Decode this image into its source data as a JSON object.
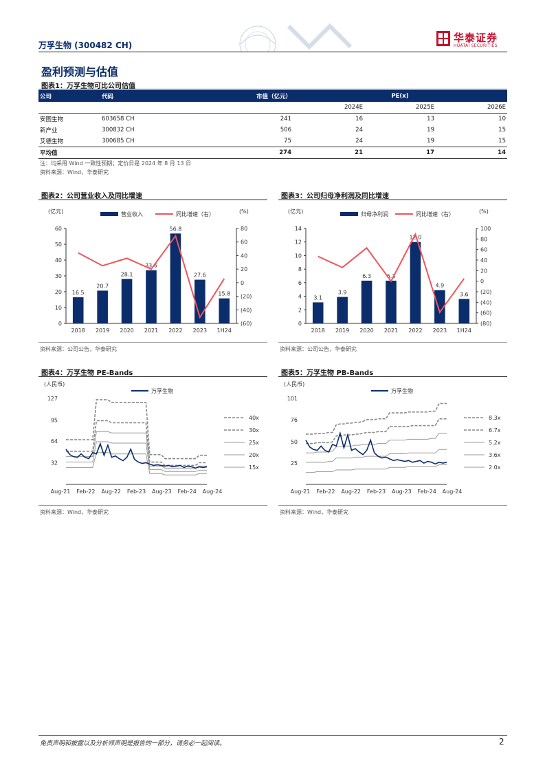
{
  "header": {
    "company": "万孚生物 (300482 CH)",
    "logo_cn": "华泰证券",
    "logo_en": "HUATAI SECURITIES"
  },
  "section_title": "盈利预测与估值",
  "table1": {
    "title": "图表1：万孚生物可比公司估值",
    "columns": {
      "company": "公司",
      "code": "代码",
      "mktcap": "市值（亿元）",
      "pe": "PE(x)"
    },
    "years": [
      "2024E",
      "2025E",
      "2026E"
    ],
    "rows": [
      {
        "company": "安图生物",
        "code": "603658 CH",
        "mktcap": "241",
        "pe": [
          "16",
          "13",
          "10"
        ]
      },
      {
        "company": "新产业",
        "code": "300832 CH",
        "mktcap": "506",
        "pe": [
          "24",
          "19",
          "15"
        ]
      },
      {
        "company": "艾德生物",
        "code": "300685 CH",
        "mktcap": "75",
        "pe": [
          "24",
          "19",
          "15"
        ]
      }
    ],
    "avg": {
      "company": "平均值",
      "mktcap": "274",
      "pe": [
        "21",
        "17",
        "14"
      ]
    },
    "note": "注：均采用 Wind 一致性预期；定价日是 2024 年 8 月 13 日",
    "source": "资料来源：Wind，华泰研究"
  },
  "charts": {
    "fig2": {
      "title": "图表2：公司营业收入及同比增速",
      "source": "资料来源：公司公告，华泰研究"
    },
    "fig3": {
      "title": "图表3：公司归母净利润及同比增速",
      "source": "资料来源：公司公告，华泰研究"
    },
    "fig4": {
      "title": "图表4：万孚生物 PE-Bands",
      "source": "资料来源：Wind，华泰研究"
    },
    "fig5": {
      "title": "图表5：万孚生物 PB-Bands",
      "source": "资料来源：Wind，华泰研究"
    }
  },
  "chart_data": [
    {
      "type": "bar",
      "categories": [
        "2018",
        "2019",
        "2020",
        "2021",
        "2022",
        "2023",
        "1H24"
      ],
      "series": [
        {
          "name": "营业收入",
          "kind": "bar",
          "axis": "left",
          "values": [
            16.5,
            20.7,
            28.1,
            33.6,
            56.8,
            27.6,
            15.8
          ]
        },
        {
          "name": "同比增速（右）",
          "kind": "line",
          "axis": "right",
          "values": [
            44,
            25,
            36,
            20,
            69,
            -51,
            6
          ]
        }
      ],
      "left_unit": "(亿元)",
      "right_unit": "(%)",
      "ylim_left": [
        0,
        60
      ],
      "yticks_left": [
        0,
        10,
        20,
        30,
        40,
        50,
        60
      ],
      "ylim_right": [
        -60,
        80
      ],
      "yticks_right": [
        "(60)",
        "(40)",
        "(20)",
        "0",
        "20",
        "40",
        "60",
        "80"
      ],
      "bar_color": "#0c2d6b",
      "line_color": "#f0545a"
    },
    {
      "type": "bar",
      "categories": [
        "2018",
        "2019",
        "2020",
        "2021",
        "2022",
        "2023",
        "1H24"
      ],
      "series": [
        {
          "name": "归母净利润",
          "kind": "bar",
          "axis": "left",
          "values": [
            3.1,
            3.9,
            6.3,
            6.3,
            12.0,
            4.9,
            3.6
          ]
        },
        {
          "name": "同比增速（右）",
          "kind": "line",
          "axis": "right",
          "values": [
            47,
            26,
            63,
            0,
            89,
            -59,
            5
          ]
        }
      ],
      "left_unit": "(亿元)",
      "right_unit": "(%)",
      "ylim_left": [
        0,
        14
      ],
      "yticks_left": [
        0,
        2,
        4,
        6,
        8,
        10,
        12,
        14
      ],
      "ylim_right": [
        -80,
        100
      ],
      "yticks_right": [
        "(80)",
        "(60)",
        "(40)",
        "(20)",
        "0",
        "20",
        "40",
        "60",
        "80",
        "100"
      ],
      "bar_color": "#0c2d6b",
      "line_color": "#f0545a"
    },
    {
      "type": "line",
      "title": "",
      "unit": "(人民币)",
      "x_ticks": [
        "Aug-21",
        "Feb-22",
        "Aug-22",
        "Feb-23",
        "Aug-23",
        "Feb-24",
        "Aug-24"
      ],
      "ylim": [
        0,
        127
      ],
      "yticks": [
        32,
        64,
        95,
        127
      ],
      "price_name": "万孚生物",
      "price": [
        52,
        44,
        41,
        40,
        45,
        40,
        38,
        47,
        45,
        60,
        43,
        58,
        40,
        42,
        38,
        35,
        40,
        52,
        37,
        33,
        31,
        32,
        30,
        28,
        29,
        28,
        27,
        28,
        26,
        27,
        28,
        25,
        27,
        26,
        24,
        26,
        25,
        26
      ],
      "bands": [
        {
          "name": "40x",
          "style": "dash",
          "values": [
            66,
            66,
            66,
            66,
            66,
            66,
            66,
            66,
            125,
            125,
            125,
            125,
            121,
            121,
            121,
            121,
            121,
            121,
            121,
            121,
            121,
            121,
            44,
            44,
            44,
            44,
            38,
            38,
            38,
            38,
            38,
            38,
            38,
            38,
            38,
            43,
            43,
            43
          ]
        },
        {
          "name": "30x",
          "style": "dash",
          "values": [
            49,
            49,
            49,
            49,
            49,
            49,
            49,
            49,
            94,
            94,
            94,
            94,
            91,
            91,
            91,
            91,
            91,
            91,
            91,
            91,
            91,
            91,
            33,
            33,
            33,
            33,
            28,
            28,
            28,
            28,
            28,
            28,
            28,
            28,
            28,
            32,
            32,
            32
          ]
        },
        {
          "name": "25x",
          "style": "solid",
          "values": [
            41,
            41,
            41,
            41,
            41,
            41,
            41,
            41,
            78,
            78,
            78,
            78,
            76,
            76,
            76,
            76,
            76,
            76,
            76,
            76,
            76,
            76,
            27,
            27,
            27,
            27,
            24,
            24,
            24,
            24,
            24,
            24,
            24,
            24,
            24,
            27,
            27,
            27
          ]
        },
        {
          "name": "20x",
          "style": "solid",
          "values": [
            33,
            33,
            33,
            33,
            33,
            33,
            33,
            33,
            63,
            63,
            63,
            63,
            61,
            61,
            61,
            61,
            61,
            61,
            61,
            61,
            61,
            61,
            22,
            22,
            22,
            22,
            19,
            19,
            19,
            19,
            19,
            19,
            19,
            19,
            19,
            21,
            21,
            21
          ]
        },
        {
          "name": "15x",
          "style": "solid",
          "values": [
            25,
            25,
            25,
            25,
            25,
            25,
            25,
            25,
            47,
            47,
            47,
            47,
            45,
            45,
            45,
            45,
            45,
            45,
            45,
            45,
            45,
            45,
            16,
            16,
            16,
            16,
            14,
            14,
            14,
            14,
            14,
            14,
            14,
            14,
            14,
            16,
            16,
            16
          ]
        }
      ]
    },
    {
      "type": "line",
      "title": "",
      "unit": "(人民币)",
      "x_ticks": [
        "Aug-21",
        "Feb-22",
        "Aug-22",
        "Feb-23",
        "Aug-23",
        "Feb-24",
        "Aug-24"
      ],
      "ylim": [
        0,
        101
      ],
      "yticks": [
        25,
        50,
        76,
        101
      ],
      "price_name": "万孚生物",
      "price": [
        52,
        44,
        41,
        40,
        45,
        40,
        38,
        47,
        45,
        60,
        43,
        58,
        40,
        42,
        38,
        35,
        40,
        52,
        37,
        33,
        31,
        32,
        30,
        28,
        29,
        28,
        27,
        28,
        26,
        27,
        28,
        25,
        27,
        26,
        24,
        26,
        25,
        26
      ],
      "bands": [
        {
          "name": "8.3x",
          "style": "dash",
          "values": [
            59,
            59,
            59,
            60,
            60,
            60,
            61,
            61,
            70,
            71,
            71,
            72,
            72,
            73,
            73,
            74,
            76,
            76,
            76,
            77,
            77,
            77,
            84,
            84,
            84,
            84,
            84,
            85,
            85,
            85,
            85,
            85,
            85,
            86,
            86,
            95,
            95,
            95
          ]
        },
        {
          "name": "6.7x",
          "style": "dash",
          "values": [
            48,
            48,
            48,
            49,
            49,
            49,
            49,
            50,
            57,
            57,
            58,
            58,
            58,
            59,
            59,
            60,
            61,
            61,
            61,
            62,
            62,
            62,
            68,
            68,
            68,
            68,
            68,
            68,
            69,
            69,
            69,
            69,
            69,
            69,
            69,
            77,
            77,
            77
          ]
        },
        {
          "name": "5.2x",
          "style": "solid",
          "values": [
            37,
            37,
            37,
            38,
            38,
            38,
            38,
            39,
            44,
            44,
            45,
            45,
            45,
            46,
            46,
            47,
            47,
            47,
            47,
            48,
            48,
            48,
            52,
            52,
            52,
            52,
            52,
            53,
            53,
            53,
            53,
            53,
            53,
            54,
            54,
            60,
            60,
            60
          ]
        },
        {
          "name": "3.6x",
          "style": "solid",
          "values": [
            26,
            26,
            26,
            26,
            26,
            26,
            27,
            27,
            31,
            31,
            31,
            31,
            31,
            32,
            32,
            32,
            33,
            33,
            33,
            33,
            33,
            33,
            36,
            36,
            36,
            36,
            36,
            37,
            37,
            37,
            37,
            37,
            37,
            37,
            37,
            41,
            41,
            41
          ]
        },
        {
          "name": "2.0x",
          "style": "solid",
          "values": [
            14,
            14,
            14,
            15,
            15,
            15,
            15,
            15,
            17,
            17,
            17,
            17,
            17,
            18,
            18,
            18,
            18,
            18,
            18,
            18,
            18,
            18,
            20,
            20,
            20,
            20,
            20,
            21,
            21,
            21,
            21,
            21,
            21,
            21,
            21,
            23,
            23,
            23
          ]
        }
      ]
    }
  ],
  "footer": {
    "disclaimer": "免责声明和披露以及分析师声明是报告的一部分，请务必一起阅读。",
    "page": "2"
  }
}
